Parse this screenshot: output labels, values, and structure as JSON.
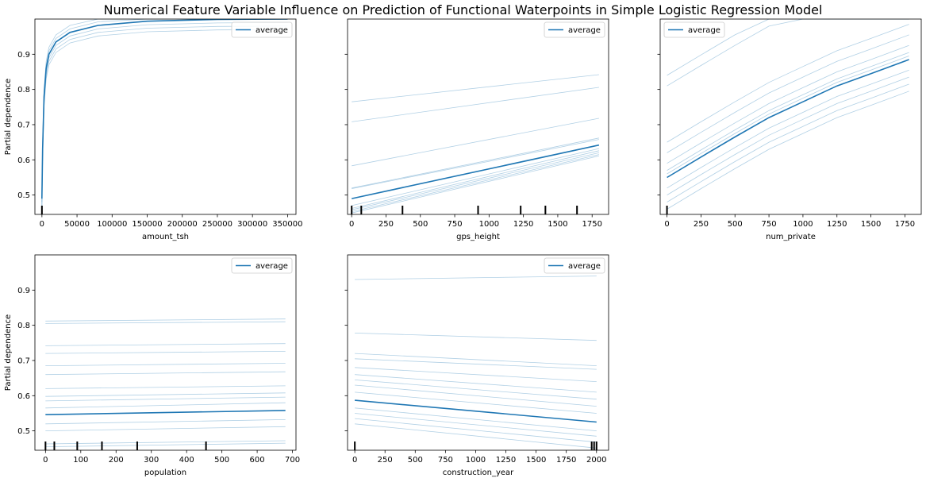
{
  "figure": {
    "title": "Numerical Feature Variable Influence on Prediction of Functional Waterpoints in Simple Logistic Regression Model"
  },
  "colors": {
    "line": "#1f77b4",
    "ice": "#1f77b4",
    "rug": "#000000"
  },
  "chart_data": [
    {
      "type": "line",
      "xlabel": "amount_tsh",
      "ylabel": "Partial dependence",
      "xlim": [
        -10000,
        362000
      ],
      "ylim": [
        0.445,
        1.0
      ],
      "xticks": [
        0,
        50000,
        100000,
        150000,
        200000,
        250000,
        300000,
        350000
      ],
      "yticks": [
        0.5,
        0.6,
        0.7,
        0.8,
        0.9
      ],
      "legend": {
        "label": "average",
        "position": "top-right"
      },
      "average": {
        "x": [
          0,
          1000,
          3000,
          6000,
          10000,
          20000,
          40000,
          80000,
          150000,
          250000,
          350000
        ],
        "y": [
          0.49,
          0.63,
          0.78,
          0.86,
          0.9,
          0.935,
          0.962,
          0.982,
          0.994,
          0.999,
          1.0
        ]
      },
      "ice_offsets": [
        -0.03,
        -0.01,
        0.0,
        0.01,
        0.02,
        -0.02
      ],
      "rug": [
        0
      ]
    },
    {
      "type": "line",
      "xlabel": "gps_height",
      "ylabel": "",
      "xlim": [
        -30,
        1870
      ],
      "ylim": [
        0.445,
        1.0
      ],
      "xticks": [
        0,
        250,
        500,
        750,
        1000,
        1250,
        1500,
        1750
      ],
      "yticks": [
        0.5,
        0.6,
        0.7,
        0.8,
        0.9
      ],
      "legend": {
        "label": "average",
        "position": "top-right"
      },
      "average": {
        "x": [
          0,
          1800
        ],
        "y": [
          0.49,
          0.642
        ]
      },
      "ice_lines": [
        {
          "x": [
            0,
            1800
          ],
          "y": [
            0.765,
            0.842
          ]
        },
        {
          "x": [
            0,
            1800
          ],
          "y": [
            0.708,
            0.806
          ]
        },
        {
          "x": [
            0,
            1800
          ],
          "y": [
            0.583,
            0.718
          ]
        },
        {
          "x": [
            0,
            1800
          ],
          "y": [
            0.52,
            0.662
          ]
        },
        {
          "x": [
            0,
            1800
          ],
          "y": [
            0.518,
            0.658
          ]
        },
        {
          "x": [
            0,
            1800
          ],
          "y": [
            0.47,
            0.632
          ]
        },
        {
          "x": [
            0,
            1800
          ],
          "y": [
            0.462,
            0.626
          ]
        },
        {
          "x": [
            0,
            1800
          ],
          "y": [
            0.458,
            0.62
          ]
        },
        {
          "x": [
            0,
            1800
          ],
          "y": [
            0.453,
            0.615
          ]
        },
        {
          "x": [
            0,
            1800
          ],
          "y": [
            0.449,
            0.611
          ]
        }
      ],
      "rug": [
        0,
        70,
        370,
        920,
        1230,
        1410,
        1640
      ]
    },
    {
      "type": "line",
      "xlabel": "num_private",
      "ylabel": "",
      "xlim": [
        -50,
        1870
      ],
      "ylim": [
        0.445,
        1.0
      ],
      "xticks": [
        0,
        250,
        500,
        750,
        1000,
        1250,
        1500,
        1750
      ],
      "yticks": [
        0.5,
        0.6,
        0.7,
        0.8,
        0.9
      ],
      "legend": {
        "label": "average",
        "position": "top-left"
      },
      "average": {
        "x": [
          0,
          250,
          500,
          750,
          1000,
          1250,
          1500,
          1780
        ],
        "y": [
          0.55,
          0.608,
          0.665,
          0.72,
          0.765,
          0.81,
          0.845,
          0.885
        ]
      },
      "ice_offsets": [
        0.29,
        0.26,
        0.1,
        0.07,
        0.04,
        0.02,
        0.01,
        -0.03,
        -0.05,
        -0.07,
        -0.09
      ],
      "rug": [
        0
      ]
    },
    {
      "type": "line",
      "xlabel": "population",
      "ylabel": "Partial dependence",
      "xlim": [
        -30,
        710
      ],
      "ylim": [
        0.445,
        1.0
      ],
      "xticks": [
        0,
        100,
        200,
        300,
        400,
        500,
        600,
        700
      ],
      "yticks": [
        0.5,
        0.6,
        0.7,
        0.8,
        0.9
      ],
      "legend": {
        "label": "average",
        "position": "top-right"
      },
      "average": {
        "x": [
          0,
          680
        ],
        "y": [
          0.546,
          0.558
        ]
      },
      "ice_lines": [
        {
          "x": [
            0,
            680
          ],
          "y": [
            0.812,
            0.818
          ]
        },
        {
          "x": [
            0,
            680
          ],
          "y": [
            0.805,
            0.81
          ]
        },
        {
          "x": [
            0,
            680
          ],
          "y": [
            0.742,
            0.748
          ]
        },
        {
          "x": [
            0,
            680
          ],
          "y": [
            0.72,
            0.726
          ]
        },
        {
          "x": [
            0,
            680
          ],
          "y": [
            0.685,
            0.692
          ]
        },
        {
          "x": [
            0,
            680
          ],
          "y": [
            0.66,
            0.668
          ]
        },
        {
          "x": [
            0,
            680
          ],
          "y": [
            0.62,
            0.628
          ]
        },
        {
          "x": [
            0,
            680
          ],
          "y": [
            0.598,
            0.608
          ]
        },
        {
          "x": [
            0,
            680
          ],
          "y": [
            0.585,
            0.596
          ]
        },
        {
          "x": [
            0,
            680
          ],
          "y": [
            0.565,
            0.58
          ]
        },
        {
          "x": [
            0,
            680
          ],
          "y": [
            0.52,
            0.532
          ]
        },
        {
          "x": [
            0,
            680
          ],
          "y": [
            0.5,
            0.512
          ]
        },
        {
          "x": [
            0,
            680
          ],
          "y": [
            0.463,
            0.472
          ]
        },
        {
          "x": [
            0,
            680
          ],
          "y": [
            0.455,
            0.465
          ]
        }
      ],
      "rug": [
        0,
        25,
        90,
        160,
        260,
        455
      ]
    },
    {
      "type": "line",
      "xlabel": "construction_year",
      "ylabel": "",
      "xlim": [
        -60,
        2100
      ],
      "ylim": [
        0.445,
        1.0
      ],
      "xticks": [
        0,
        250,
        500,
        750,
        1000,
        1250,
        1500,
        1750,
        2000
      ],
      "yticks": [
        0.5,
        0.6,
        0.7,
        0.8,
        0.9
      ],
      "legend": {
        "label": "average",
        "position": "top-right"
      },
      "average": {
        "x": [
          0,
          2000
        ],
        "y": [
          0.587,
          0.525
        ]
      },
      "ice_lines": [
        {
          "x": [
            0,
            2000
          ],
          "y": [
            0.93,
            0.94
          ]
        },
        {
          "x": [
            0,
            2000
          ],
          "y": [
            0.778,
            0.757
          ]
        },
        {
          "x": [
            0,
            2000
          ],
          "y": [
            0.72,
            0.685
          ]
        },
        {
          "x": [
            0,
            2000
          ],
          "y": [
            0.705,
            0.675
          ]
        },
        {
          "x": [
            0,
            2000
          ],
          "y": [
            0.68,
            0.64
          ]
        },
        {
          "x": [
            0,
            2000
          ],
          "y": [
            0.66,
            0.61
          ]
        },
        {
          "x": [
            0,
            2000
          ],
          "y": [
            0.645,
            0.59
          ]
        },
        {
          "x": [
            0,
            2000
          ],
          "y": [
            0.63,
            0.57
          ]
        },
        {
          "x": [
            0,
            2000
          ],
          "y": [
            0.61,
            0.55
          ]
        },
        {
          "x": [
            0,
            2000
          ],
          "y": [
            0.565,
            0.5
          ]
        },
        {
          "x": [
            0,
            2000
          ],
          "y": [
            0.55,
            0.485
          ]
        },
        {
          "x": [
            0,
            2000
          ],
          "y": [
            0.535,
            0.468
          ]
        },
        {
          "x": [
            0,
            2000
          ],
          "y": [
            0.52,
            0.451
          ]
        }
      ],
      "rug": [
        0,
        1960,
        1980,
        2000
      ]
    }
  ]
}
